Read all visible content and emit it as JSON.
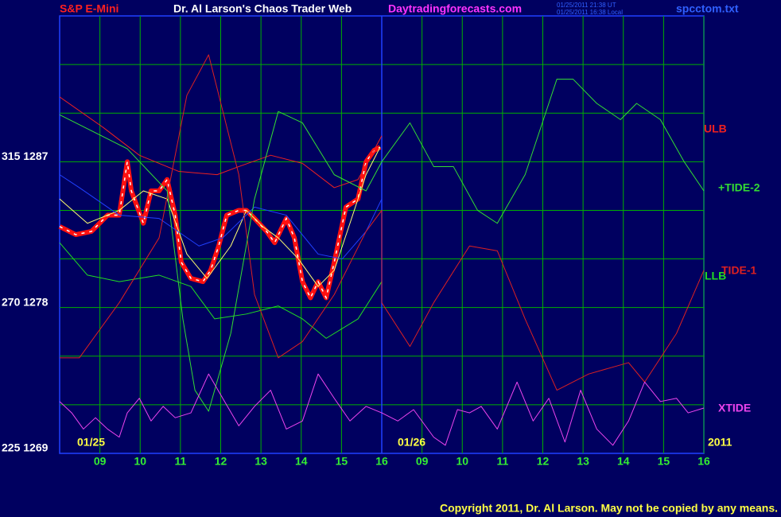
{
  "chart_data": {
    "type": "line",
    "symbol": "S&P E-Mini",
    "title": "Dr. Al Larson's Chaos Trader Web",
    "site": "Daytradingforecasts.com",
    "timestamps": [
      "01/25/2011 21:38 UT",
      "01/25/2011 16:38 Local"
    ],
    "file": "spcctom.txt",
    "copyright": "Copyright 2011, Dr. Al Larson. May not be copied by any means.",
    "annotations": [
      "01/25",
      "01/26",
      "2011"
    ],
    "xlim": [
      0,
      16
    ],
    "ylim": [
      1269,
      1296
    ],
    "xticks": [
      {
        "value": 1,
        "label": "09"
      },
      {
        "value": 2,
        "label": "10"
      },
      {
        "value": 3,
        "label": "11"
      },
      {
        "value": 4,
        "label": "12"
      },
      {
        "value": 5,
        "label": "13"
      },
      {
        "value": 6,
        "label": "14"
      },
      {
        "value": 7,
        "label": "15"
      },
      {
        "value": 8,
        "label": "16"
      },
      {
        "value": 9,
        "label": "09"
      },
      {
        "value": 10,
        "label": "10"
      },
      {
        "value": 11,
        "label": "11"
      },
      {
        "value": 12,
        "label": "12"
      },
      {
        "value": 13,
        "label": "13"
      },
      {
        "value": 14,
        "label": "14"
      },
      {
        "value": 15,
        "label": "15"
      },
      {
        "value": 16,
        "label": "16"
      }
    ],
    "yticks": [
      {
        "value": 1287,
        "label": "315  1287"
      },
      {
        "value": 1278,
        "label": "270  1278"
      },
      {
        "value": 1269,
        "label": "225  1269"
      }
    ],
    "ygrid": [
      1272,
      1275,
      1278,
      1281,
      1284,
      1287,
      1290,
      1293
    ],
    "grid": true,
    "series": [
      {
        "color": "#ff1010",
        "style": "price",
        "x": [
          0,
          0.4,
          0.79,
          1.19,
          1.48,
          1.68,
          1.78,
          2.08,
          2.27,
          2.47,
          2.67,
          2.87,
          3.02,
          3.26,
          3.56,
          3.75,
          3.95,
          4.15,
          4.45,
          4.64,
          4.84,
          5.14,
          5.34,
          5.63,
          5.83,
          6.03,
          6.23,
          6.42,
          6.62,
          6.82,
          7.11,
          7.41,
          7.61,
          7.81,
          7.96
        ],
        "values": [
          1283.0,
          1282.5,
          1282.7,
          1283.7,
          1283.7,
          1287.0,
          1285.2,
          1283.2,
          1285.2,
          1285.2,
          1285.9,
          1283.7,
          1280.8,
          1279.8,
          1279.6,
          1280.3,
          1281.8,
          1283.7,
          1284.0,
          1284.0,
          1283.5,
          1282.7,
          1282.0,
          1283.5,
          1282.3,
          1279.6,
          1278.6,
          1279.6,
          1278.6,
          1280.8,
          1284.2,
          1284.7,
          1287.0,
          1287.7,
          1287.9
        ]
      },
      {
        "color": "#ffff70",
        "x": [
          0,
          0.69,
          1.48,
          2.08,
          2.67,
          3.16,
          3.66,
          4.25,
          4.64,
          5.04,
          5.43,
          5.93,
          6.42,
          6.82,
          7.21,
          7.61,
          7.96
        ],
        "values": [
          1284.7,
          1283.2,
          1284.0,
          1285.2,
          1284.7,
          1281.3,
          1279.8,
          1281.8,
          1284.0,
          1283.0,
          1282.3,
          1281.0,
          1279.3,
          1280.3,
          1283.2,
          1286.2,
          1287.9
        ]
      },
      {
        "color": "#2040ff",
        "x": [
          0,
          0.49,
          1.48,
          2.47,
          3.46,
          4.05,
          4.84,
          5.63,
          6.42,
          7.02,
          7.61,
          8
        ],
        "values": [
          1286.2,
          1285.4,
          1283.7,
          1283.5,
          1281.8,
          1282.3,
          1284.2,
          1283.7,
          1281.3,
          1281.0,
          1282.7,
          1284.7
        ]
      },
      {
        "name": "ULB",
        "color": "#ee2020",
        "x": [
          0,
          1.09,
          1.98,
          2.96,
          3.91,
          4.45,
          5.24,
          6.03,
          6.82,
          7.41,
          8
        ],
        "values": [
          1291.0,
          1289.1,
          1287.4,
          1286.4,
          1286.2,
          1286.7,
          1287.4,
          1286.9,
          1285.4,
          1285.9,
          1288.6
        ]
      },
      {
        "name": "LLB",
        "color": "#22dd22",
        "x": [
          0,
          0.69,
          1.48,
          2.47,
          3.26,
          3.85,
          4.64,
          5.43,
          6.03,
          6.62,
          7.41,
          8
        ],
        "values": [
          1282.0,
          1280.0,
          1279.6,
          1280.0,
          1279.3,
          1277.3,
          1277.6,
          1278.1,
          1277.3,
          1276.1,
          1277.3,
          1279.6
        ]
      },
      {
        "name": "TIDE-1",
        "color": "#dd2020",
        "x": [
          0,
          0.49,
          1.48,
          2.47,
          3.16,
          3.7,
          4.45,
          4.84,
          5.43,
          6.03,
          6.82,
          7.61,
          8,
          8,
          8.7,
          9.29,
          10.18,
          10.87,
          11.56,
          12.35,
          13.14,
          14.13,
          14.53,
          15.32,
          16
        ],
        "values": [
          1274.9,
          1274.9,
          1278.3,
          1282.3,
          1291.1,
          1293.6,
          1286.2,
          1278.8,
          1274.9,
          1275.9,
          1278.8,
          1282.7,
          1284.0,
          1278.3,
          1275.6,
          1278.3,
          1281.8,
          1281.5,
          1277.3,
          1272.9,
          1273.9,
          1274.6,
          1273.4,
          1276.4,
          1280.3
        ]
      },
      {
        "name": "+TIDE-2",
        "color": "#33dd33",
        "x": [
          0,
          1.68,
          2.67,
          3.06,
          3.36,
          3.7,
          4.25,
          4.84,
          5.43,
          6.03,
          6.82,
          7.61,
          8,
          8.7,
          9.29,
          9.78,
          10.38,
          10.87,
          11.56,
          12.35,
          12.75,
          13.34,
          13.93,
          14.33,
          14.92,
          15.51,
          16
        ],
        "values": [
          1289.9,
          1287.8,
          1285.2,
          1277.3,
          1272.9,
          1271.6,
          1276.4,
          1284.7,
          1290.1,
          1289.4,
          1286.2,
          1285.2,
          1287.0,
          1289.4,
          1286.7,
          1286.7,
          1284.0,
          1283.2,
          1286.2,
          1292.1,
          1292.1,
          1290.6,
          1289.6,
          1290.6,
          1289.6,
          1287.0,
          1285.2
        ]
      },
      {
        "name": "XTIDE",
        "color": "#ee44ee",
        "x": [
          0,
          0.3,
          0.59,
          0.89,
          1.19,
          1.48,
          1.68,
          1.98,
          2.27,
          2.57,
          2.87,
          3.26,
          3.7,
          4.05,
          4.45,
          4.84,
          5.24,
          5.63,
          6.03,
          6.42,
          6.82,
          7.21,
          7.61,
          8,
          8.4,
          8.79,
          9.29,
          9.58,
          9.88,
          10.18,
          10.47,
          10.87,
          11.36,
          11.76,
          12.15,
          12.55,
          12.94,
          13.34,
          13.74,
          14.13,
          14.53,
          14.92,
          15.32,
          15.61,
          16
        ],
        "values": [
          1272.2,
          1271.5,
          1270.5,
          1271.2,
          1270.5,
          1270.0,
          1271.5,
          1272.4,
          1271.0,
          1271.9,
          1271.2,
          1271.5,
          1273.9,
          1272.4,
          1270.7,
          1271.9,
          1272.9,
          1270.5,
          1271.0,
          1273.9,
          1272.4,
          1271.0,
          1271.9,
          1271.5,
          1271.0,
          1271.7,
          1270.0,
          1269.5,
          1271.7,
          1271.5,
          1271.9,
          1270.5,
          1273.4,
          1271.0,
          1272.4,
          1269.7,
          1272.9,
          1270.5,
          1269.5,
          1271.0,
          1273.4,
          1272.2,
          1272.4,
          1271.5,
          1271.8
        ]
      }
    ]
  }
}
